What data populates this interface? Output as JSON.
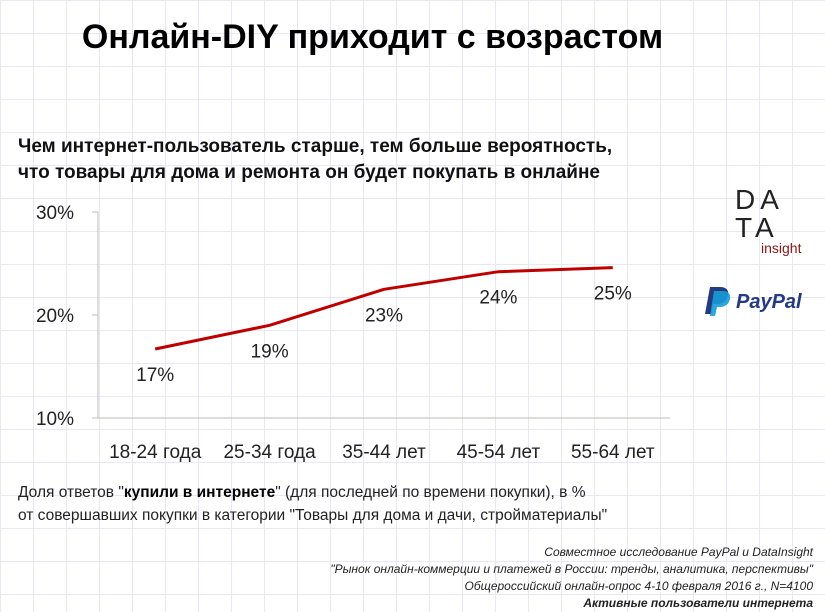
{
  "title": "Онлайн-DIY приходит с возрастом",
  "subtitle_lines": [
    "Чем интернет-пользователь старше, тем больше вероятность,",
    "что товары для дома и ремонта он будет покупать в онлайне"
  ],
  "chart_data": {
    "type": "line",
    "categories": [
      "18-24 года",
      "25-34 года",
      "35-44 лет",
      "45-54 лет",
      "55-64 лет"
    ],
    "values": [
      16.7,
      19.0,
      22.5,
      24.2,
      24.6
    ],
    "data_labels": [
      "17%",
      "19%",
      "23%",
      "24%",
      "25%"
    ],
    "ylim": [
      10,
      30
    ],
    "yticks": [
      10,
      20,
      30
    ],
    "ytick_labels": [
      "10%",
      "20%",
      "30%"
    ],
    "grid": false,
    "line_color": "#c00000"
  },
  "note": {
    "before": "Доля ответов \"",
    "bold": "купили в интернете",
    "after": "\" (для последней по времени покупки), в %%",
    "line2": "от совершавших покупки в категории \"Товары для дома и дачи, стройматериалы\""
  },
  "source": {
    "line1": "Совместное исследование PayPal и DataInsight",
    "line2": "\"Рынок онлайн-коммерции и платежей в России: тренды, аналитика, перспективы\"",
    "line3": "Общероссийский онлайн-опрос 4-10 февраля 2016 г., N=4100",
    "line4": "Активные пользователи интернета"
  },
  "logos": {
    "datainsight": {
      "line1": "DA",
      "line2": "TA",
      "small": "insight",
      "accent": "#8b1512"
    },
    "paypal": {
      "text": "PayPal",
      "dark": "#253b80",
      "light": "#179bd7"
    }
  }
}
